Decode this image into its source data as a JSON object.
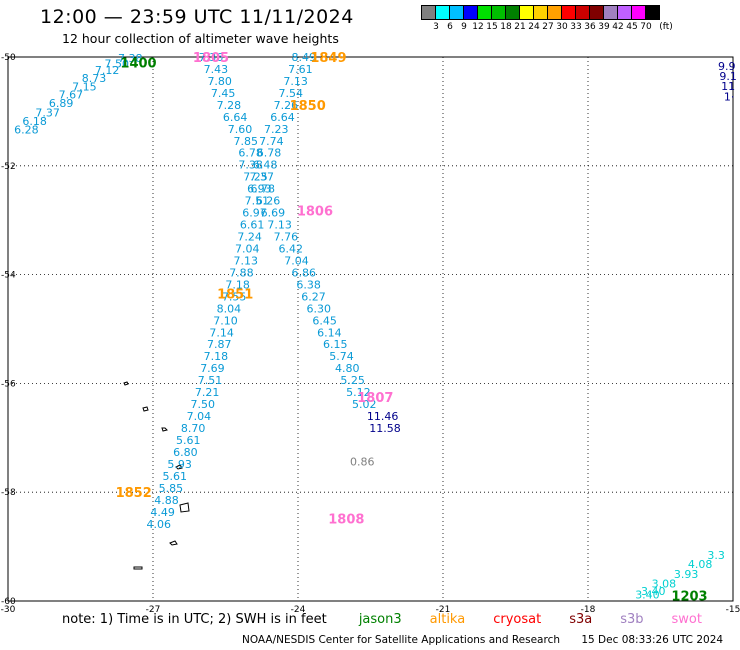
{
  "header": {
    "title": "12:00 — 23:59 UTC 11/11/2024",
    "subtitle": "12 hour collection of altimeter wave heights"
  },
  "colorbar": {
    "colors": [
      "#808080",
      "#00ffff",
      "#00bfff",
      "#0000ff",
      "#00e000",
      "#00bf00",
      "#008000",
      "#ffff00",
      "#ffd000",
      "#ffa000",
      "#ff0000",
      "#cc0000",
      "#800000",
      "#a080c0",
      "#c060ff",
      "#ff00ff",
      "#000000"
    ],
    "labels": [
      "3",
      "6",
      "9",
      "12",
      "15",
      "18",
      "21",
      "24",
      "27",
      "30",
      "33",
      "36",
      "39",
      "42",
      "45",
      "70"
    ],
    "unit": "(ft)"
  },
  "map": {
    "lon_range": [
      -30,
      -15
    ],
    "lat_range": [
      -60,
      -50
    ],
    "x_ticks": [
      "-30",
      "-27",
      "-24",
      "-21",
      "-18",
      "-15"
    ],
    "y_ticks": [
      "-50",
      "-52",
      "-54",
      "-56",
      "-58",
      "-60"
    ],
    "grid": true
  },
  "chart_data": {
    "type": "scatter",
    "description_units": "longitude, latitude, significant wave height (ft)",
    "tracks": [
      {
        "color": "#0a9ad6",
        "points": [
          {
            "lon": -29.62,
            "lat": -51.33,
            "v": "6.28"
          },
          {
            "lon": -29.45,
            "lat": -51.18,
            "v": "6.18"
          },
          {
            "lon": -29.18,
            "lat": -51.02,
            "v": "7.37"
          },
          {
            "lon": -28.9,
            "lat": -50.85,
            "v": "6.89"
          },
          {
            "lon": -28.7,
            "lat": -50.69,
            "v": "7.67"
          },
          {
            "lon": -28.42,
            "lat": -50.54,
            "v": "7.15"
          },
          {
            "lon": -28.22,
            "lat": -50.39,
            "v": "8.73"
          },
          {
            "lon": -27.95,
            "lat": -50.24,
            "v": "7.12"
          },
          {
            "lon": -27.75,
            "lat": -50.12,
            "v": "7.50"
          },
          {
            "lon": -27.47,
            "lat": -50.02,
            "v": "7.38"
          }
        ]
      },
      {
        "color": "#0a9ad6",
        "points": [
          {
            "lon": -25.8,
            "lat": -50.0,
            "v": "7.36"
          },
          {
            "lon": -25.7,
            "lat": -50.22,
            "v": "7.43"
          },
          {
            "lon": -25.62,
            "lat": -50.44,
            "v": "7.80"
          },
          {
            "lon": -25.55,
            "lat": -50.66,
            "v": "7.45"
          },
          {
            "lon": -25.43,
            "lat": -50.88,
            "v": "7.28"
          },
          {
            "lon": -25.3,
            "lat": -51.1,
            "v": "6.64"
          },
          {
            "lon": -25.2,
            "lat": -51.32,
            "v": "7.60"
          },
          {
            "lon": -25.08,
            "lat": -51.54,
            "v": "7.85"
          },
          {
            "lon": -24.98,
            "lat": -51.76,
            "v": "6.78"
          },
          {
            "lon": -24.98,
            "lat": -51.98,
            "v": "7.38"
          },
          {
            "lon": -24.88,
            "lat": -52.2,
            "v": "7.25"
          },
          {
            "lon": -24.73,
            "lat": -52.42,
            "v": "6.78"
          },
          {
            "lon": -24.62,
            "lat": -52.64,
            "v": "6.26"
          },
          {
            "lon": -24.52,
            "lat": -52.86,
            "v": "6.69"
          },
          {
            "lon": -24.38,
            "lat": -53.08,
            "v": "7.13"
          },
          {
            "lon": -24.25,
            "lat": -53.3,
            "v": "7.76"
          },
          {
            "lon": -24.15,
            "lat": -53.52,
            "v": "6.42"
          },
          {
            "lon": -24.03,
            "lat": -53.74,
            "v": "7.04"
          },
          {
            "lon": -23.88,
            "lat": -53.96,
            "v": "6.86"
          },
          {
            "lon": -23.78,
            "lat": -54.18,
            "v": "6.38"
          },
          {
            "lon": -23.68,
            "lat": -54.4,
            "v": "6.27"
          },
          {
            "lon": -23.57,
            "lat": -54.62,
            "v": "6.30"
          },
          {
            "lon": -23.45,
            "lat": -54.84,
            "v": "6.45"
          },
          {
            "lon": -23.35,
            "lat": -55.06,
            "v": "6.14"
          },
          {
            "lon": -23.23,
            "lat": -55.28,
            "v": "6.15"
          },
          {
            "lon": -23.1,
            "lat": -55.5,
            "v": "5.74"
          },
          {
            "lon": -22.98,
            "lat": -55.72,
            "v": "4.80"
          },
          {
            "lon": -22.87,
            "lat": -55.94,
            "v": "5.25"
          },
          {
            "lon": -22.75,
            "lat": -56.16,
            "v": "5.12"
          },
          {
            "lon": -22.63,
            "lat": -56.38,
            "v": "5.02"
          }
        ]
      },
      {
        "color": "#00008b",
        "points": [
          {
            "lon": -22.25,
            "lat": -56.6,
            "v": "11.46"
          },
          {
            "lon": -22.2,
            "lat": -56.82,
            "v": "11.58"
          }
        ]
      },
      {
        "color": "#808080",
        "points": [
          {
            "lon": -22.67,
            "lat": -57.44,
            "v": "0.86"
          }
        ]
      },
      {
        "color": "#0a9ad6",
        "points": [
          {
            "lon": -23.88,
            "lat": -50.0,
            "v": "8.49"
          },
          {
            "lon": -23.95,
            "lat": -50.22,
            "v": "7.61"
          },
          {
            "lon": -24.05,
            "lat": -50.44,
            "v": "7.13"
          },
          {
            "lon": -24.15,
            "lat": -50.66,
            "v": "7.54"
          },
          {
            "lon": -24.25,
            "lat": -50.88,
            "v": "7.26"
          },
          {
            "lon": -24.32,
            "lat": -51.1,
            "v": "6.64"
          },
          {
            "lon": -24.45,
            "lat": -51.32,
            "v": "7.23"
          },
          {
            "lon": -24.55,
            "lat": -51.54,
            "v": "7.74"
          },
          {
            "lon": -24.6,
            "lat": -51.76,
            "v": "6.78"
          },
          {
            "lon": -24.68,
            "lat": -51.98,
            "v": "6.48"
          },
          {
            "lon": -24.75,
            "lat": -52.2,
            "v": "7.37"
          },
          {
            "lon": -24.8,
            "lat": -52.42,
            "v": "6.93"
          },
          {
            "lon": -24.85,
            "lat": -52.64,
            "v": "7.51"
          },
          {
            "lon": -24.9,
            "lat": -52.86,
            "v": "6.97"
          },
          {
            "lon": -24.95,
            "lat": -53.08,
            "v": "6.61"
          },
          {
            "lon": -25.0,
            "lat": -53.3,
            "v": "7.24"
          },
          {
            "lon": -25.05,
            "lat": -53.52,
            "v": "7.04"
          },
          {
            "lon": -25.08,
            "lat": -53.74,
            "v": "7.13"
          },
          {
            "lon": -25.17,
            "lat": -53.96,
            "v": "7.88"
          },
          {
            "lon": -25.25,
            "lat": -54.18,
            "v": "7.18"
          },
          {
            "lon": -25.32,
            "lat": -54.4,
            "v": "7.55"
          },
          {
            "lon": -25.43,
            "lat": -54.62,
            "v": "8.04"
          },
          {
            "lon": -25.5,
            "lat": -54.84,
            "v": "7.10"
          },
          {
            "lon": -25.58,
            "lat": -55.06,
            "v": "7.14"
          },
          {
            "lon": -25.63,
            "lat": -55.28,
            "v": "7.87"
          },
          {
            "lon": -25.7,
            "lat": -55.5,
            "v": "7.18"
          },
          {
            "lon": -25.77,
            "lat": -55.72,
            "v": "7.69"
          },
          {
            "lon": -25.82,
            "lat": -55.94,
            "v": "7.51"
          },
          {
            "lon": -25.88,
            "lat": -56.16,
            "v": "7.21"
          },
          {
            "lon": -25.97,
            "lat": -56.38,
            "v": "7.50"
          },
          {
            "lon": -26.05,
            "lat": -56.6,
            "v": "7.04"
          },
          {
            "lon": -26.17,
            "lat": -56.82,
            "v": "8.70"
          },
          {
            "lon": -26.27,
            "lat": -57.04,
            "v": "5.61"
          },
          {
            "lon": -26.33,
            "lat": -57.26,
            "v": "6.80"
          },
          {
            "lon": -26.45,
            "lat": -57.48,
            "v": "5.93"
          },
          {
            "lon": -26.55,
            "lat": -57.7,
            "v": "5.61"
          },
          {
            "lon": -26.63,
            "lat": -57.92,
            "v": "5.85"
          },
          {
            "lon": -26.72,
            "lat": -58.14,
            "v": "4.88"
          },
          {
            "lon": -26.8,
            "lat": -58.36,
            "v": "4.49"
          },
          {
            "lon": -26.88,
            "lat": -58.58,
            "v": "4.06"
          }
        ]
      },
      {
        "color": "#00d0d0",
        "points": [
          {
            "lon": -16.77,
            "lat": -59.88,
            "v": "3.40"
          },
          {
            "lon": -16.65,
            "lat": -59.82,
            "v": "3.40"
          },
          {
            "lon": -16.43,
            "lat": -59.68,
            "v": "3.08"
          },
          {
            "lon": -15.97,
            "lat": -59.5,
            "v": "3.93"
          },
          {
            "lon": -15.68,
            "lat": -59.32,
            "v": "4.08"
          },
          {
            "lon": -15.35,
            "lat": -59.15,
            "v": "3.3"
          }
        ]
      },
      {
        "color": "#00008b",
        "points": [
          {
            "lon": -15.13,
            "lat": -50.17,
            "v": "9.9"
          },
          {
            "lon": -15.1,
            "lat": -50.35,
            "v": "9.1"
          },
          {
            "lon": -15.1,
            "lat": -50.53,
            "v": "11"
          },
          {
            "lon": -15.08,
            "lat": -50.73,
            "v": "1·"
          }
        ]
      }
    ],
    "hour_labels": [
      {
        "lon": -27.3,
        "lat": -50.1,
        "text": "1400",
        "color": "#008000"
      },
      {
        "lon": -25.8,
        "lat": -50.0,
        "text": "1805",
        "color": "#ff70d0"
      },
      {
        "lon": -23.37,
        "lat": -50.0,
        "text": "1849",
        "color": "#ff9900"
      },
      {
        "lon": -23.8,
        "lat": -50.88,
        "text": "1850",
        "color": "#ff9900"
      },
      {
        "lon": -23.65,
        "lat": -52.82,
        "text": "1806",
        "color": "#ff70d0"
      },
      {
        "lon": -25.3,
        "lat": -54.35,
        "text": "1851",
        "color": "#ff9900"
      },
      {
        "lon": -22.4,
        "lat": -56.25,
        "text": "1807",
        "color": "#ff70d0"
      },
      {
        "lon": -23.0,
        "lat": -58.48,
        "text": "1808",
        "color": "#ff70d0"
      },
      {
        "lon": -27.4,
        "lat": -58.0,
        "text": "1852",
        "color": "#ff9900"
      },
      {
        "lon": -15.9,
        "lat": -59.9,
        "text": "1203",
        "color": "#008000"
      }
    ]
  },
  "notes": {
    "text": "note:  1) Time is in UTC; 2) SWH is in feet",
    "satellites": [
      {
        "name": "jason3",
        "color": "#008000"
      },
      {
        "name": "altika",
        "color": "#ff9900"
      },
      {
        "name": "cryosat",
        "color": "#ff0000"
      },
      {
        "name": "s3a",
        "color": "#800000"
      },
      {
        "name": "s3b",
        "color": "#a080c0"
      },
      {
        "name": "swot",
        "color": "#ff70d0"
      }
    ]
  },
  "footer": {
    "credit": "NOAA/NESDIS Center for Satellite Applications and Research",
    "timestamp": "15 Dec 08:33:26 UTC 2024"
  }
}
